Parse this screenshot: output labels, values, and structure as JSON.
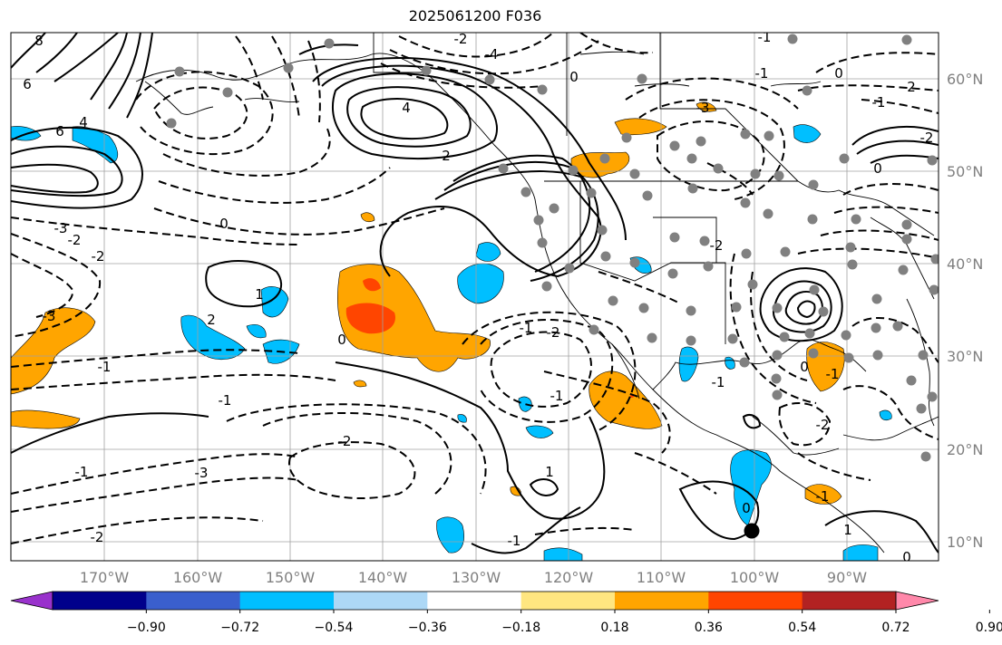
{
  "title": "2025061200 F036",
  "lon_labels": [
    "170°W",
    "160°W",
    "150°W",
    "140°W",
    "130°W",
    "120°W",
    "110°W",
    "100°W",
    "90°W"
  ],
  "lat_labels": [
    "60°N",
    "50°N",
    "40°N",
    "30°N",
    "20°N",
    "10°N"
  ],
  "colorbar": {
    "ticks": [
      "−0.90",
      "−0.72",
      "−0.54",
      "−0.36",
      "−0.18",
      "0.18",
      "0.36",
      "0.54",
      "0.72",
      "0.90"
    ],
    "colors": [
      "#9932cc",
      "#00008b",
      "#3a5fcd",
      "#00bfff",
      "#add8f6",
      "#ffffff",
      "#ffe680",
      "#ffa500",
      "#ff4500",
      "#b22222",
      "#ff88aa"
    ]
  },
  "contour_labels": [
    "8",
    "6",
    "4",
    "6",
    "4",
    "2",
    "-2",
    "-4",
    "-3",
    "-2",
    "-1",
    "0",
    "-3",
    "-2",
    "-1",
    "2",
    "1",
    "0",
    "-2",
    "-1",
    "-1",
    "-2",
    "-3",
    "-2",
    "-1",
    "0",
    "-1",
    "-3",
    "-2",
    "0",
    "-1",
    "0",
    "2",
    "-2",
    "-1",
    "-2",
    "-1",
    "1",
    "0",
    "-1",
    "0",
    "-1",
    "1",
    "0",
    "-1"
  ],
  "shading_colors": {
    "negative_light": "#00bfff",
    "positive_orange": "#ffa500",
    "positive_red": "#ff4500"
  },
  "station_marker_color": "#808080"
}
